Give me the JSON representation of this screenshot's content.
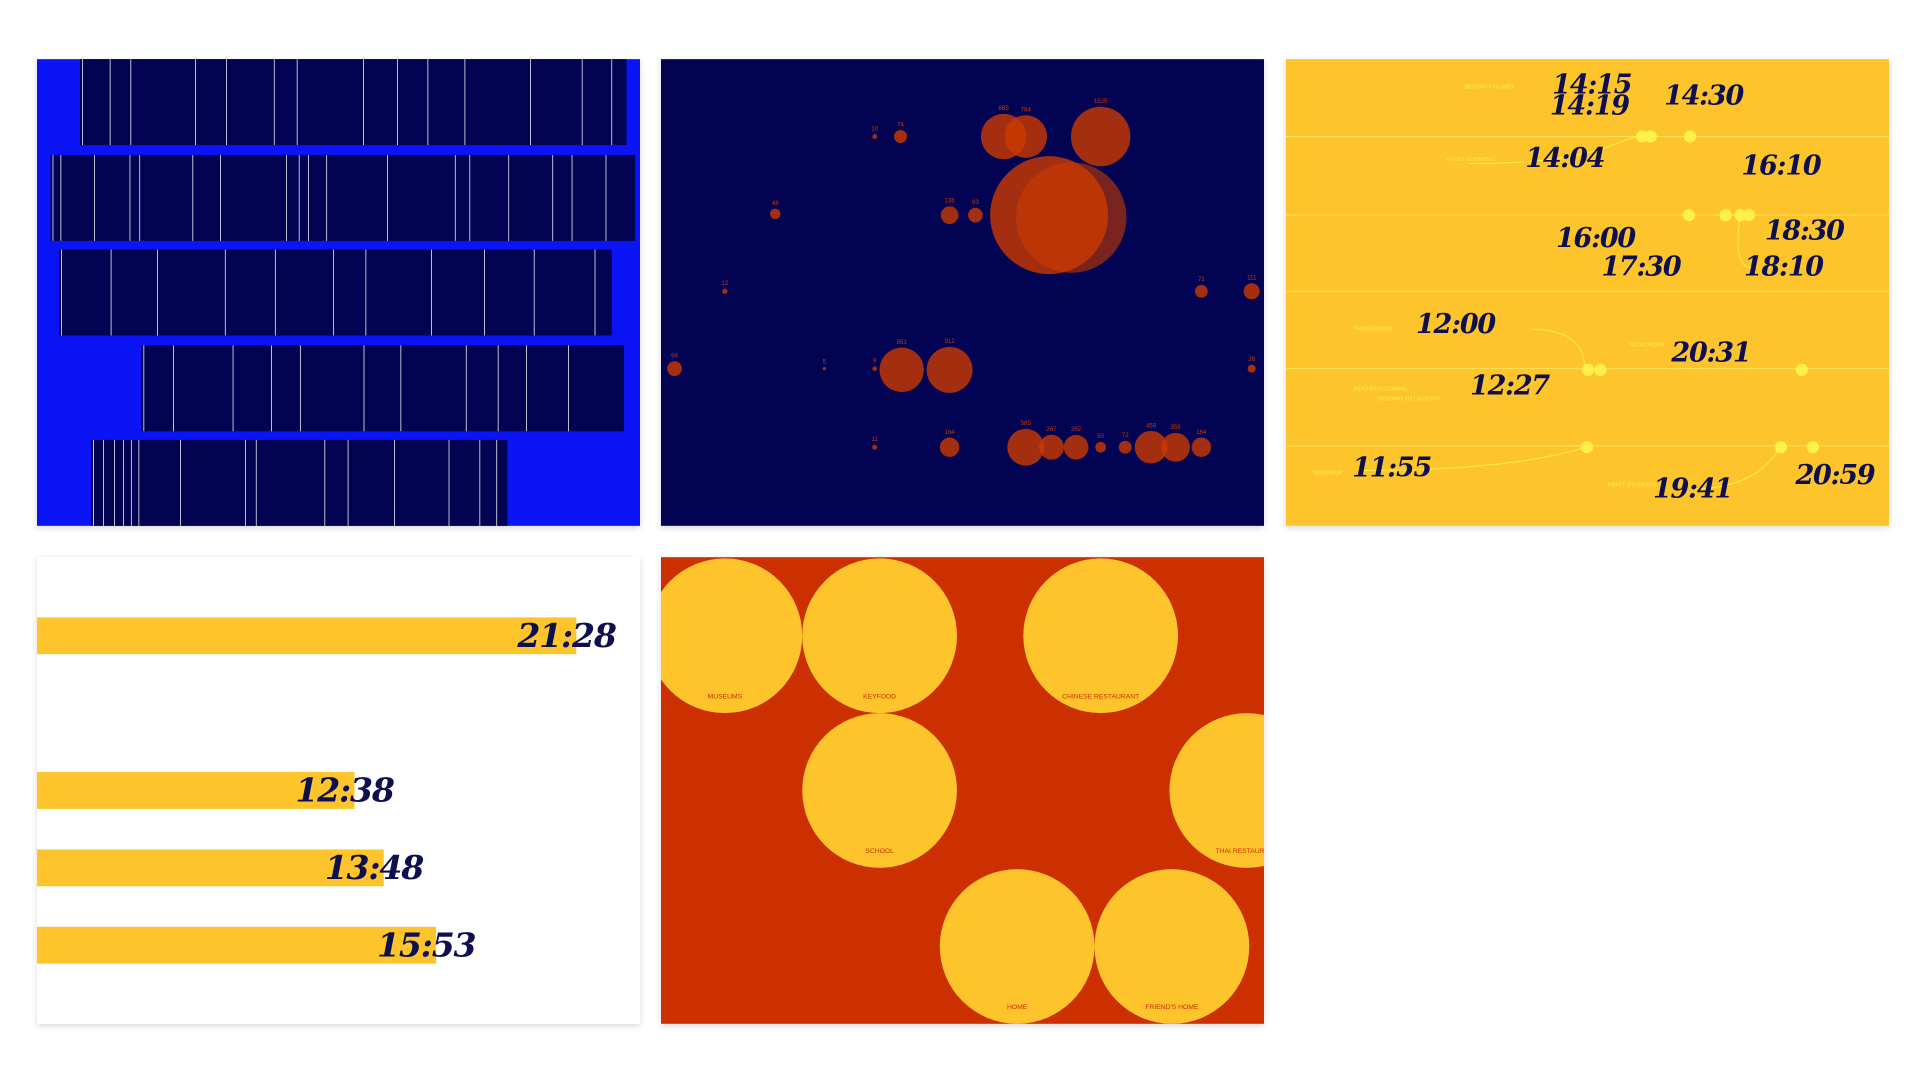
{
  "tiles": [
    {
      "kind": "stripes"
    },
    {
      "kind": "bubbles",
      "bubbles": [
        10,
        74,
        885,
        784,
        1525,
        48,
        136,
        93,
        12,
        71,
        111,
        94,
        5,
        9,
        851,
        912,
        28,
        11,
        164,
        585,
        267,
        262,
        50,
        72,
        458,
        359,
        164
      ]
    },
    {
      "kind": "timeline",
      "times": [
        "14:15",
        "14:19",
        "14:30",
        "14:04",
        "16:10",
        "16:00",
        "18:30",
        "17:30",
        "18:10",
        "12:00",
        "20:31",
        "12:27",
        "11:55",
        "19:41",
        "20:59"
      ],
      "notes": [
        "SECURITY GUARD",
        "PEERS IN MAKING",
        "PROFESSORS",
        "NEIGHBOR COMING",
        "HEADING TO LAUNDRY",
        "MICA UNDER",
        "PRATT STUDENTS",
        "NEIGHBOR"
      ]
    },
    {
      "kind": "bars",
      "times": [
        "21:28",
        "12:38",
        "13:48",
        "15:53"
      ]
    },
    {
      "kind": "places",
      "places": [
        "MUSEUMS",
        "KEYFOOD",
        "CHINESE RESTAURANT",
        "SCHOOL",
        "THAI RESTAURANT",
        "HOME",
        "FRIEND'S HOME"
      ]
    }
  ]
}
